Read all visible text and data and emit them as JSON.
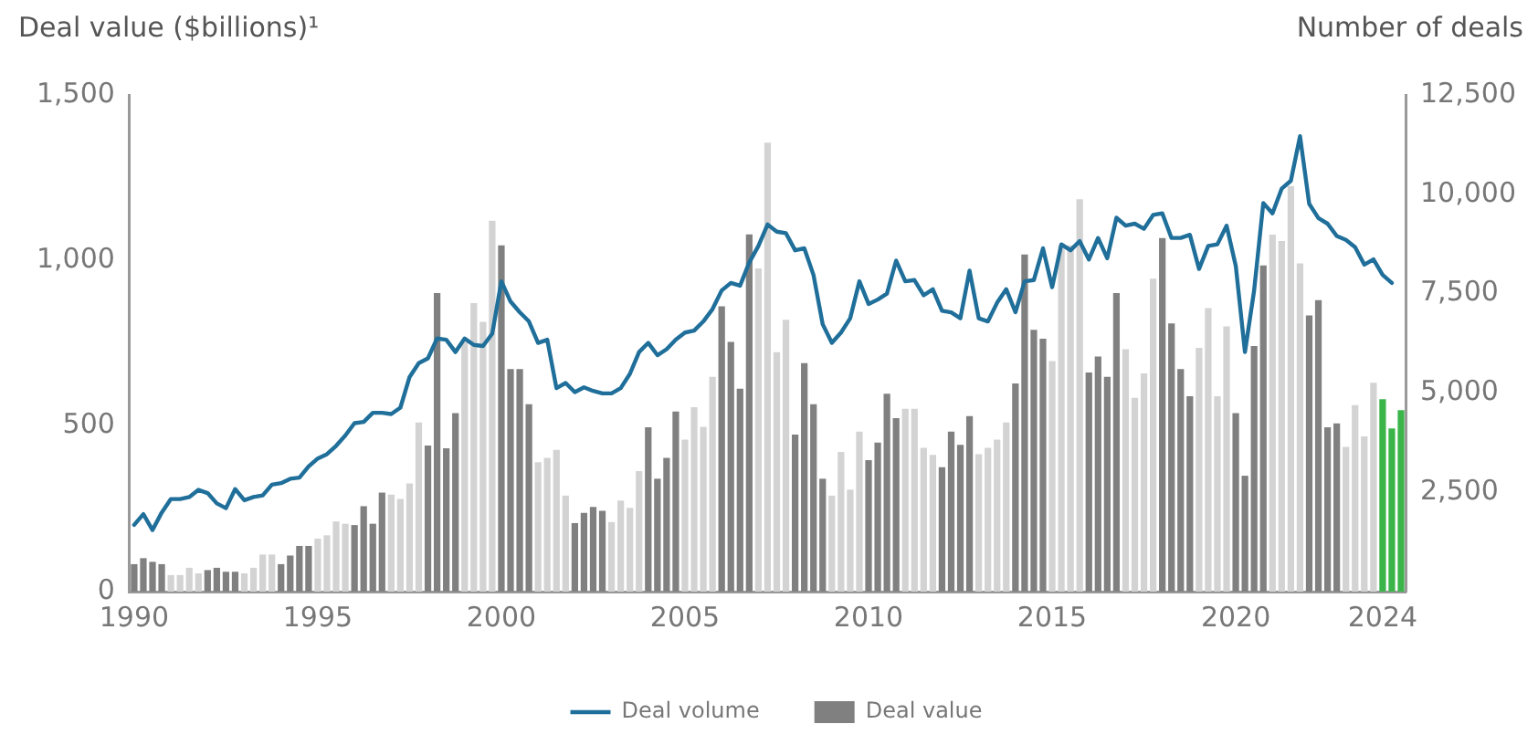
{
  "chart_data": {
    "type": "bar",
    "ylabel": "Deal value ($billions)¹",
    "y2label": "Number of deals",
    "categories": [
      "1990",
      null,
      null,
      null,
      null,
      null,
      null,
      null,
      null,
      null,
      null,
      null,
      null,
      null,
      null,
      null,
      null,
      null,
      null,
      null,
      "1995",
      null,
      null,
      null,
      null,
      null,
      null,
      null,
      null,
      null,
      null,
      null,
      null,
      null,
      null,
      null,
      null,
      null,
      null,
      null,
      "2000",
      null,
      null,
      null,
      null,
      null,
      null,
      null,
      null,
      null,
      null,
      null,
      null,
      null,
      null,
      null,
      null,
      null,
      null,
      null,
      "2005",
      null,
      null,
      null,
      null,
      null,
      null,
      null,
      null,
      null,
      null,
      null,
      null,
      null,
      null,
      null,
      null,
      null,
      null,
      null,
      "2010",
      null,
      null,
      null,
      null,
      null,
      null,
      null,
      null,
      null,
      null,
      null,
      null,
      null,
      null,
      null,
      null,
      null,
      null,
      null,
      "2015",
      null,
      null,
      null,
      null,
      null,
      null,
      null,
      null,
      null,
      null,
      null,
      null,
      null,
      null,
      null,
      null,
      null,
      null,
      null,
      "2020",
      null,
      null,
      null,
      null,
      null,
      null,
      null,
      null,
      null,
      null,
      null,
      null,
      null,
      null,
      null,
      "2024",
      null,
      null
    ],
    "series": [
      {
        "type": "line",
        "name": "Deal volume",
        "color": "#1f6f9a",
        "axis": "y2",
        "values": [
          1680,
          1950,
          1550,
          1990,
          2330,
          2330,
          2380,
          2560,
          2480,
          2220,
          2100,
          2580,
          2300,
          2380,
          2420,
          2690,
          2730,
          2840,
          2870,
          3150,
          3350,
          3460,
          3670,
          3930,
          4240,
          4270,
          4500,
          4500,
          4470,
          4630,
          5400,
          5750,
          5870,
          6370,
          6340,
          6030,
          6370,
          6210,
          6180,
          6490,
          7810,
          7300,
          7030,
          6800,
          6260,
          6340,
          5120,
          5250,
          5020,
          5140,
          5050,
          4990,
          4990,
          5120,
          5480,
          6030,
          6260,
          5950,
          6100,
          6340,
          6520,
          6570,
          6800,
          7110,
          7580,
          7770,
          7700,
          8280,
          8700,
          9240,
          9060,
          9020,
          8590,
          8640,
          7970,
          6730,
          6260,
          6520,
          6880,
          7810,
          7240,
          7350,
          7500,
          8330,
          7810,
          7840,
          7460,
          7610,
          7070,
          7030,
          6880,
          8080,
          6880,
          6800,
          7270,
          7610,
          7030,
          7810,
          7840,
          8640,
          7660,
          8740,
          8590,
          8820,
          8360,
          8900,
          8390,
          9410,
          9210,
          9260,
          9130,
          9480,
          9520,
          8900,
          8900,
          8980,
          8120,
          8700,
          8740,
          9210,
          8200,
          6030,
          7580,
          9780,
          9520,
          10140,
          10340,
          11460,
          9760,
          9400,
          9260,
          8950,
          8850,
          8670,
          8230,
          8360,
          7970,
          7770,
          null
        ]
      },
      {
        "name": "Deal value",
        "color": "#808080",
        "values": [
          83,
          101,
          90,
          83,
          50,
          50,
          72,
          55,
          65,
          72,
          60,
          60,
          55,
          72,
          112,
          112,
          83,
          109,
          138,
          138,
          160,
          170,
          212,
          205,
          201,
          258,
          205,
          299,
          293,
          280,
          327,
          511,
          441,
          902,
          433,
          539,
          753,
          871,
          815,
          1120,
          1046,
          672,
          672,
          566,
          391,
          404,
          428,
          290,
          207,
          238,
          256,
          244,
          210,
          275,
          253,
          364,
          496,
          341,
          404,
          544,
          459,
          557,
          498,
          649,
          862,
          754,
          613,
          1079,
          976,
          1356,
          723,
          821,
          474,
          690,
          566,
          341,
          290,
          422,
          308,
          483,
          397,
          450,
          598,
          524,
          552,
          552,
          434,
          413,
          376,
          483,
          443,
          530,
          415,
          434,
          459,
          511,
          629,
          1018,
          791,
          764,
          696,
          1046,
          1046,
          1185,
          662,
          710,
          649,
          902,
          732,
          585,
          659,
          945,
          1068,
          810,
          672,
          590,
          736,
          856,
          590,
          801,
          539,
          350,
          742,
          985,
          1078,
          1059,
          1225,
          991,
          834,
          880,
          496,
          508,
          437,
          563,
          469,
          631,
          581,
          493,
          548
        ],
        "colors": [
          "#808080",
          "#808080",
          "#808080",
          "#808080",
          "#d3d3d3",
          "#d3d3d3",
          "#d3d3d3",
          "#d3d3d3",
          "#808080",
          "#808080",
          "#808080",
          "#808080",
          "#d3d3d3",
          "#d3d3d3",
          "#d3d3d3",
          "#d3d3d3",
          "#808080",
          "#808080",
          "#808080",
          "#808080",
          "#d3d3d3",
          "#d3d3d3",
          "#d3d3d3",
          "#d3d3d3",
          "#808080",
          "#808080",
          "#808080",
          "#808080",
          "#d3d3d3",
          "#d3d3d3",
          "#d3d3d3",
          "#d3d3d3",
          "#808080",
          "#808080",
          "#808080",
          "#808080",
          "#d3d3d3",
          "#d3d3d3",
          "#d3d3d3",
          "#d3d3d3",
          "#808080",
          "#808080",
          "#808080",
          "#808080",
          "#d3d3d3",
          "#d3d3d3",
          "#d3d3d3",
          "#d3d3d3",
          "#808080",
          "#808080",
          "#808080",
          "#808080",
          "#d3d3d3",
          "#d3d3d3",
          "#d3d3d3",
          "#d3d3d3",
          "#808080",
          "#808080",
          "#808080",
          "#808080",
          "#d3d3d3",
          "#d3d3d3",
          "#d3d3d3",
          "#d3d3d3",
          "#808080",
          "#808080",
          "#808080",
          "#808080",
          "#d3d3d3",
          "#d3d3d3",
          "#d3d3d3",
          "#d3d3d3",
          "#808080",
          "#808080",
          "#808080",
          "#808080",
          "#d3d3d3",
          "#d3d3d3",
          "#d3d3d3",
          "#d3d3d3",
          "#808080",
          "#808080",
          "#808080",
          "#808080",
          "#d3d3d3",
          "#d3d3d3",
          "#d3d3d3",
          "#d3d3d3",
          "#808080",
          "#808080",
          "#808080",
          "#808080",
          "#d3d3d3",
          "#d3d3d3",
          "#d3d3d3",
          "#d3d3d3",
          "#808080",
          "#808080",
          "#808080",
          "#808080",
          "#d3d3d3",
          "#d3d3d3",
          "#d3d3d3",
          "#d3d3d3",
          "#808080",
          "#808080",
          "#808080",
          "#808080",
          "#d3d3d3",
          "#d3d3d3",
          "#d3d3d3",
          "#d3d3d3",
          "#808080",
          "#808080",
          "#808080",
          "#808080",
          "#d3d3d3",
          "#d3d3d3",
          "#d3d3d3",
          "#d3d3d3",
          "#808080",
          "#808080",
          "#808080",
          "#808080",
          "#d3d3d3",
          "#d3d3d3",
          "#d3d3d3",
          "#d3d3d3",
          "#808080",
          "#808080",
          "#808080",
          "#808080",
          "#d3d3d3",
          "#d3d3d3",
          "#d3d3d3",
          "#d3d3d3",
          "#3bb54a",
          "#3bb54a",
          "#3bb54a"
        ]
      }
    ],
    "ylim": [
      0,
      1500
    ],
    "yticks": [
      0,
      {
        "value": 500,
        "label": "500"
      },
      {
        "value": 1000,
        "label": "1,000"
      },
      {
        "value": 1500,
        "label": "1,500"
      }
    ],
    "y2lim": [
      0,
      12500
    ],
    "y2ticks": [
      {
        "value": 2500,
        "label": "2,500"
      },
      {
        "value": 5000,
        "label": "5,000"
      },
      {
        "value": 7500,
        "label": "7,500"
      },
      {
        "value": 10000,
        "label": "10,000"
      },
      {
        "value": 12500,
        "label": "12,500"
      }
    ],
    "grid": false,
    "legend": "bottom",
    "marker": "none",
    "line_style": "solid"
  }
}
